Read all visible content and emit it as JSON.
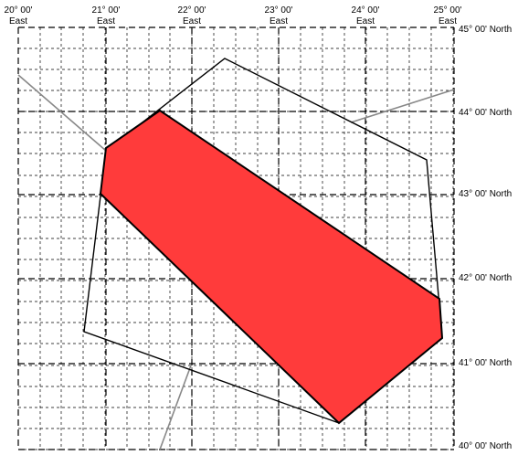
{
  "map": {
    "lon_labels": [
      {
        "deg": "20° 00'",
        "dir": "East"
      },
      {
        "deg": "21° 00'",
        "dir": "East"
      },
      {
        "deg": "22° 00'",
        "dir": "East"
      },
      {
        "deg": "23° 00'",
        "dir": "East"
      },
      {
        "deg": "24° 00'",
        "dir": "East"
      },
      {
        "deg": "25° 00'",
        "dir": "East"
      }
    ],
    "lat_labels": [
      "45° 00' North",
      "44° 00' North",
      "43° 00' North",
      "42° 00' North",
      "41° 00' North",
      "40° 00' North"
    ],
    "colors": {
      "highlight_fill": "#ff3b3b",
      "outline": "#000000",
      "border_lines": "#888888",
      "grid": "#000000"
    }
  }
}
